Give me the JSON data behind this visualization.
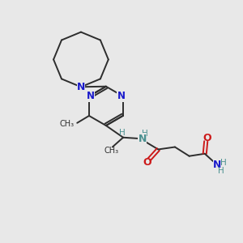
{
  "background_color": "#e8e8e8",
  "bond_color": "#2d2d2d",
  "N_color": "#1a1acc",
  "O_color": "#cc1a1a",
  "NH_color": "#4a9090",
  "figsize": [
    3.0,
    3.0
  ],
  "dpi": 100,
  "xlim": [
    0,
    10
  ],
  "ylim": [
    0,
    10
  ]
}
